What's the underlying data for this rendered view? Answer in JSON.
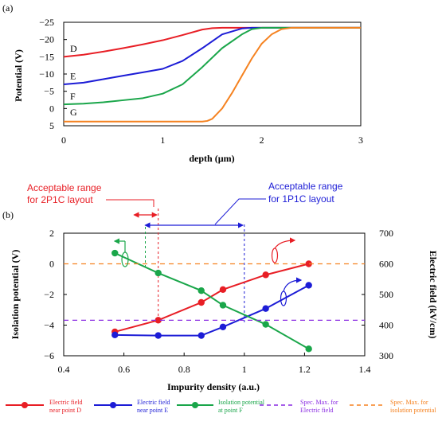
{
  "colors": {
    "red": "#e81e25",
    "blue": "#1c1cd6",
    "green": "#1aa64a",
    "orange": "#f58220",
    "purple": "#8a2be2",
    "black": "#000000"
  },
  "chart_data": [
    {
      "id": "a",
      "panel_label": "(a)",
      "type": "line",
      "xlabel": "depth (µm)",
      "ylabel": "Potential (V)",
      "xlim": [
        0,
        3
      ],
      "ylim": [
        5,
        -25
      ],
      "y_inverted": true,
      "x_ticks": [
        "0",
        "1",
        "2",
        "3"
      ],
      "y_ticks": [
        "−25",
        "−20",
        "−15",
        "−10",
        "−5",
        "0",
        "5"
      ],
      "x_tick_values": [
        0,
        1,
        2,
        3
      ],
      "y_tick_values": [
        -25,
        -20,
        -15,
        -10,
        -5,
        0,
        5
      ],
      "series": [
        {
          "name": "D",
          "color": "red",
          "x": [
            0,
            0.2,
            0.4,
            0.6,
            0.8,
            1.0,
            1.2,
            1.4,
            1.5,
            1.6,
            3.0
          ],
          "y": [
            -15,
            -15.6,
            -16.5,
            -17.5,
            -18.6,
            -19.8,
            -21.3,
            -22.9,
            -23.3,
            -23.4,
            -23.4
          ]
        },
        {
          "name": "E",
          "color": "blue",
          "x": [
            0,
            0.2,
            0.4,
            0.6,
            0.8,
            1.0,
            1.2,
            1.4,
            1.6,
            1.8,
            1.9,
            3.0
          ],
          "y": [
            -7,
            -7.5,
            -8.5,
            -9.5,
            -10.5,
            -11.5,
            -13.8,
            -17.5,
            -21.5,
            -23.2,
            -23.4,
            -23.4
          ]
        },
        {
          "name": "F",
          "color": "green",
          "x": [
            0,
            0.2,
            0.4,
            0.6,
            0.8,
            1.0,
            1.2,
            1.4,
            1.6,
            1.8,
            1.9,
            2.0,
            3.0
          ],
          "y": [
            -1.2,
            -1.4,
            -1.8,
            -2.4,
            -3.0,
            -4.3,
            -7.0,
            -12.0,
            -17.5,
            -21.5,
            -23.0,
            -23.4,
            -23.4
          ]
        },
        {
          "name": "G",
          "color": "orange",
          "x": [
            0,
            0.5,
            1.0,
            1.4,
            1.45,
            1.5,
            1.6,
            1.7,
            1.8,
            1.9,
            2.0,
            2.1,
            2.2,
            2.3,
            3.0
          ],
          "y": [
            3.8,
            3.8,
            3.8,
            3.8,
            3.6,
            3.0,
            0.0,
            -4.5,
            -9.5,
            -14.5,
            -18.8,
            -21.5,
            -23.0,
            -23.4,
            -23.4
          ]
        }
      ]
    },
    {
      "id": "b",
      "panel_label": "(b)",
      "type": "line",
      "xlabel": "Impurity density (a.u.)",
      "ylabel_left": "Isolation potential (V)",
      "ylabel_right": "Electric field (kV/cm)",
      "xlim": [
        0.4,
        1.4
      ],
      "ylim_left": [
        -6,
        2
      ],
      "ylim_right": [
        300,
        700
      ],
      "x_ticks": [
        "0.4",
        "0.6",
        "0.8",
        "1",
        "1.2",
        "1.4"
      ],
      "x_tick_values": [
        0.4,
        0.6,
        0.8,
        1.0,
        1.2,
        1.4
      ],
      "y_left_ticks": [
        "2",
        "0",
        "−2",
        "−4",
        "−6"
      ],
      "y_left_tick_values": [
        2,
        0,
        -2,
        -4,
        -6
      ],
      "y_right_ticks": [
        "700",
        "600",
        "500",
        "400",
        "300"
      ],
      "y_right_tick_values": [
        700,
        600,
        500,
        400,
        300
      ],
      "series": [
        {
          "name": "Electric field near point D",
          "color": "red",
          "axis": "right",
          "x": [
            0.57,
            0.714,
            0.857,
            0.929,
            1.071,
            1.214
          ],
          "y": [
            378,
            416,
            474,
            516,
            564,
            600
          ]
        },
        {
          "name": "Electric field near point E",
          "color": "blue",
          "axis": "right",
          "x": [
            0.57,
            0.714,
            0.857,
            0.929,
            1.071,
            1.214
          ],
          "y": [
            368,
            366,
            366,
            394,
            454,
            530
          ]
        },
        {
          "name": "Isolation potential at point F",
          "color": "green",
          "axis": "left",
          "x": [
            0.57,
            0.714,
            0.857,
            0.929,
            1.071,
            1.214
          ],
          "y": [
            0.7,
            -0.6,
            -1.75,
            -2.7,
            -3.95,
            -5.55
          ]
        },
        {
          "name": "Spec. Max. for Electric field",
          "color": "purple",
          "axis": "right",
          "style": "dashed",
          "x": [
            0.4,
            1.4
          ],
          "y": [
            416,
            416
          ]
        },
        {
          "name": "Spec. Max. for isolation potential",
          "color": "orange",
          "axis": "left",
          "style": "dashed",
          "x": [
            0.4,
            1.4
          ],
          "y": [
            0,
            0
          ]
        }
      ],
      "annotations": [
        {
          "text_lines": [
            "Acceptable range",
            "for 2P1C layout"
          ],
          "color": "red",
          "range_x": [
            0.65,
            0.714
          ]
        },
        {
          "text_lines": [
            "Acceptable range",
            "for 1P1C layout"
          ],
          "color": "blue",
          "range_x": [
            0.65,
            1.0
          ]
        }
      ]
    }
  ]
}
